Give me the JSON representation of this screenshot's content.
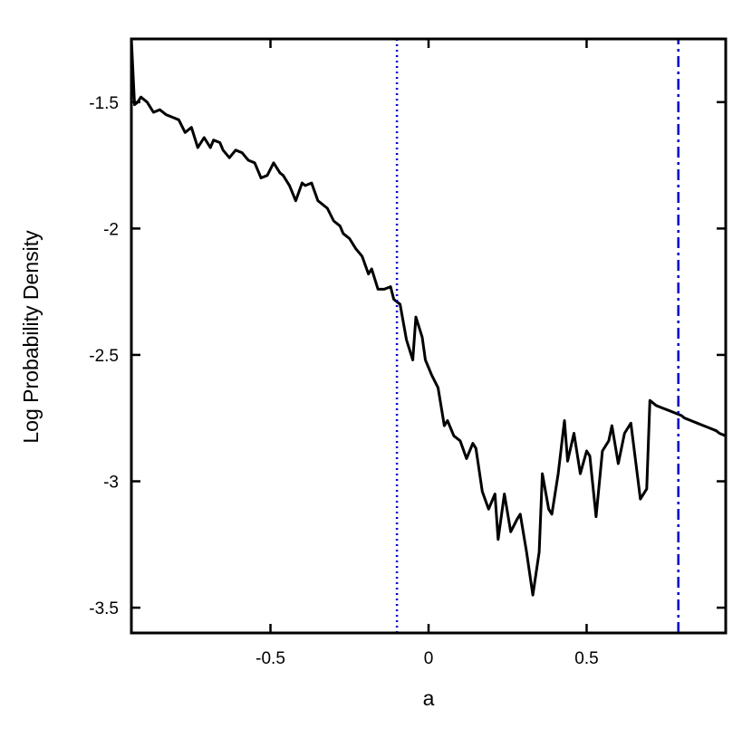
{
  "chart_data": {
    "type": "line",
    "title": "",
    "xlabel": "a",
    "ylabel": "Log Probability Density",
    "xlim": [
      -0.94,
      0.94
    ],
    "ylim": [
      -3.6,
      -1.25
    ],
    "grid": false,
    "xticks": [
      {
        "value": -0.5,
        "label": "-0.5"
      },
      {
        "value": 0,
        "label": "0"
      },
      {
        "value": 0.5,
        "label": "0.5"
      }
    ],
    "yticks": [
      {
        "value": -1.5,
        "label": "-1.5"
      },
      {
        "value": -2,
        "label": "-2"
      },
      {
        "value": -2.5,
        "label": "-2.5"
      },
      {
        "value": -3,
        "label": "-3"
      },
      {
        "value": -3.5,
        "label": "-3.5"
      }
    ],
    "series": [
      {
        "color": "#000000",
        "x": [
          -0.94,
          -0.93,
          -0.92,
          -0.91,
          -0.89,
          -0.87,
          -0.85,
          -0.83,
          -0.81,
          -0.79,
          -0.77,
          -0.75,
          -0.73,
          -0.71,
          -0.69,
          -0.68,
          -0.66,
          -0.65,
          -0.63,
          -0.61,
          -0.59,
          -0.57,
          -0.55,
          -0.53,
          -0.51,
          -0.49,
          -0.47,
          -0.46,
          -0.44,
          -0.42,
          -0.4,
          -0.39,
          -0.37,
          -0.35,
          -0.34,
          -0.32,
          -0.3,
          -0.28,
          -0.27,
          -0.25,
          -0.23,
          -0.21,
          -0.19,
          -0.18,
          -0.16,
          -0.14,
          -0.12,
          -0.11,
          -0.09,
          -0.07,
          -0.05,
          -0.04,
          -0.02,
          -0.01,
          0.01,
          0.03,
          0.05,
          0.06,
          0.08,
          0.1,
          0.12,
          0.14,
          0.15,
          0.17,
          0.19,
          0.21,
          0.22,
          0.24,
          0.26,
          0.28,
          0.29,
          0.31,
          0.33,
          0.35,
          0.36,
          0.38,
          0.39,
          0.41,
          0.43,
          0.44,
          0.46,
          0.48,
          0.5,
          0.51,
          0.53,
          0.55,
          0.57,
          0.58,
          0.6,
          0.62,
          0.64,
          0.65,
          0.67,
          0.69,
          0.7,
          0.72,
          0.74,
          0.76,
          0.78,
          0.8,
          0.81,
          0.83,
          0.85,
          0.87,
          0.89,
          0.91,
          0.92,
          0.94
        ],
        "y": [
          -1.25,
          -1.51,
          -1.5,
          -1.48,
          -1.5,
          -1.54,
          -1.53,
          -1.55,
          -1.56,
          -1.57,
          -1.62,
          -1.6,
          -1.68,
          -1.64,
          -1.68,
          -1.65,
          -1.66,
          -1.69,
          -1.72,
          -1.69,
          -1.7,
          -1.73,
          -1.74,
          -1.8,
          -1.79,
          -1.74,
          -1.78,
          -1.79,
          -1.83,
          -1.89,
          -1.82,
          -1.83,
          -1.82,
          -1.89,
          -1.9,
          -1.92,
          -1.97,
          -1.99,
          -2.02,
          -2.04,
          -2.08,
          -2.11,
          -2.18,
          -2.16,
          -2.24,
          -2.24,
          -2.23,
          -2.28,
          -2.3,
          -2.44,
          -2.52,
          -2.35,
          -2.43,
          -2.52,
          -2.58,
          -2.63,
          -2.78,
          -2.76,
          -2.82,
          -2.84,
          -2.91,
          -2.85,
          -2.87,
          -3.04,
          -3.11,
          -3.05,
          -3.23,
          -3.05,
          -3.2,
          -3.15,
          -3.13,
          -3.28,
          -3.45,
          -3.28,
          -2.97,
          -3.11,
          -3.13,
          -2.97,
          -2.76,
          -2.92,
          -2.81,
          -2.97,
          -2.88,
          -2.9,
          -3.14,
          -2.88,
          -2.84,
          -2.78,
          -2.93,
          -2.81,
          -2.77,
          -2.87,
          -3.07,
          -3.03,
          -2.68,
          -2.7,
          -2.71,
          -2.72,
          -2.73,
          -2.74,
          -2.75,
          -2.76,
          -2.77,
          -2.78,
          -2.79,
          -2.8,
          -2.81,
          -2.82
        ]
      },
      {
        "color": "#0000cc",
        "style": "dotted",
        "x": [
          -0.1,
          -0.1
        ],
        "y": [
          -3.6,
          -1.25
        ]
      },
      {
        "color": "#0000cc",
        "style": "dashdot",
        "x": [
          0.79,
          0.79
        ],
        "y": [
          -3.6,
          -1.25
        ]
      }
    ]
  }
}
